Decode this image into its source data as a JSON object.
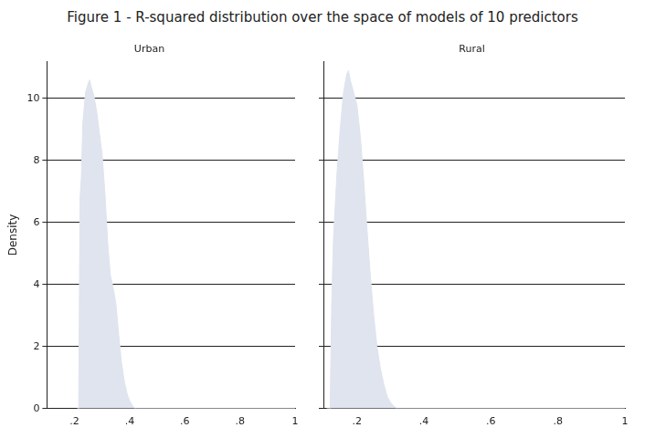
{
  "title": "Figure 1 - R-squared distribution over the space of models of 10 predictors",
  "chart_data": [
    {
      "type": "area",
      "title": "Urban",
      "ylabel": "Density",
      "color": "#dfe4ee",
      "grid": true,
      "x": [
        0.21,
        0.215,
        0.22,
        0.225,
        0.23,
        0.24,
        0.25,
        0.255,
        0.26,
        0.27,
        0.28,
        0.29,
        0.3,
        0.31,
        0.32,
        0.33,
        0.34,
        0.35,
        0.36,
        0.37,
        0.38,
        0.39,
        0.4,
        0.41,
        0.42,
        1.0
      ],
      "values": [
        0,
        0,
        6.8,
        7.5,
        9.2,
        10.2,
        10.5,
        10.6,
        10.4,
        10.1,
        9.6,
        8.9,
        8.2,
        7,
        5.4,
        4.3,
        3.9,
        3.4,
        2.4,
        1.5,
        0.9,
        0.5,
        0.25,
        0.1,
        0,
        0
      ],
      "xlim": [
        0.1,
        1
      ],
      "ylim": [
        0,
        11.2
      ],
      "xticks": [
        {
          "value": 0.2,
          "label": ".2"
        },
        {
          "value": 0.4,
          "label": ".4"
        },
        {
          "value": 0.6,
          "label": ".6"
        },
        {
          "value": 0.8,
          "label": ".8"
        },
        1
      ],
      "yticks": [
        0,
        2,
        4,
        6,
        8,
        10
      ]
    },
    {
      "type": "area",
      "title": "Rural",
      "color": "#dfe4ee",
      "grid": true,
      "tick_labels": "x",
      "x": [
        0.11,
        0.12,
        0.125,
        0.13,
        0.14,
        0.15,
        0.16,
        0.17,
        0.175,
        0.18,
        0.19,
        0.2,
        0.21,
        0.22,
        0.23,
        0.24,
        0.25,
        0.26,
        0.27,
        0.28,
        0.29,
        0.3,
        0.31,
        0.32,
        1.0
      ],
      "values": [
        0,
        0,
        3.5,
        5.5,
        7.5,
        9,
        10.2,
        10.8,
        10.9,
        10.6,
        10.2,
        9.8,
        8.8,
        7.4,
        5.8,
        4.3,
        3.0,
        2.0,
        1.3,
        0.8,
        0.4,
        0.2,
        0.08,
        0,
        0
      ],
      "xlim": [
        0.1,
        1
      ],
      "ylim": [
        0,
        11.2
      ],
      "xticks": [
        {
          "value": 0.2,
          "label": ".2"
        },
        {
          "value": 0.4,
          "label": ".4"
        },
        {
          "value": 0.6,
          "label": ".6"
        },
        {
          "value": 0.8,
          "label": ".8"
        },
        1
      ],
      "yticks": [
        0,
        2,
        4,
        6,
        8,
        10
      ]
    }
  ]
}
